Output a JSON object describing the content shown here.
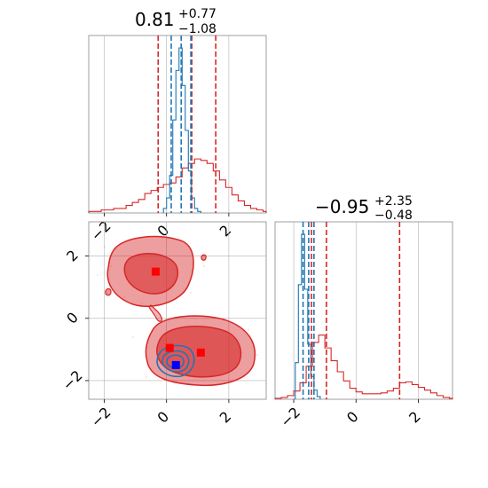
{
  "figure": {
    "colors": {
      "red": "#d62728",
      "blue": "#1f77b4",
      "grid": "#b0b0b0",
      "axis": "#888888",
      "marker_red": "#ff0000",
      "marker_blue": "#0000ff"
    }
  },
  "chart_data": [
    {
      "type": "histogram",
      "panel": "top-left",
      "title": {
        "main": "0.81",
        "plus": "+0.77",
        "minus": "−1.08"
      },
      "xlim": [
        -2.5,
        3.2
      ],
      "grid": true,
      "xticks": [
        -2,
        0,
        2
      ],
      "series": [
        {
          "color": "red",
          "bins": [
            -2.5,
            -2.3,
            -2.1,
            -1.9,
            -1.7,
            -1.5,
            -1.3,
            -1.1,
            -0.9,
            -0.7,
            -0.5,
            -0.3,
            -0.1,
            0.1,
            0.3,
            0.5,
            0.7,
            0.9,
            1.1,
            1.3,
            1.5,
            1.7,
            1.9,
            2.1,
            2.3,
            2.5,
            2.7,
            2.9,
            3.1
          ],
          "counts": [
            1,
            1,
            2,
            2,
            3,
            3,
            5,
            7,
            9,
            13,
            15,
            17,
            19,
            20,
            24,
            30,
            33,
            36,
            35,
            33,
            28,
            22,
            17,
            12,
            8,
            5,
            3,
            2,
            1
          ]
        },
        {
          "color": "blue",
          "bins": [
            -0.1,
            0.0,
            0.1,
            0.2,
            0.3,
            0.4,
            0.5,
            0.6,
            0.7,
            0.8,
            0.9,
            1.0
          ],
          "counts": [
            3,
            10,
            25,
            62,
            95,
            110,
            85,
            55,
            28,
            10,
            3,
            1
          ]
        }
      ],
      "vlines_red": [
        -0.27,
        0.81,
        1.58
      ],
      "vlines_blue": [
        0.15,
        0.47,
        0.78
      ]
    },
    {
      "type": "contour",
      "panel": "bottom-left",
      "xlim": [
        -2.5,
        3.2
      ],
      "ylim": [
        -2.6,
        3.1
      ],
      "grid": true,
      "xticks": [
        -2,
        0,
        2
      ],
      "yticks": [
        -2,
        0,
        2
      ],
      "markers": [
        {
          "x": -0.35,
          "y": 1.5,
          "color": "marker_red"
        },
        {
          "x": 0.1,
          "y": -0.95,
          "color": "marker_red"
        },
        {
          "x": 1.1,
          "y": -1.1,
          "color": "marker_red"
        },
        {
          "x": 0.3,
          "y": -1.5,
          "color": "marker_blue"
        }
      ]
    },
    {
      "type": "histogram",
      "panel": "bottom-right",
      "title": {
        "main": "−0.95",
        "plus": "+2.35",
        "minus": "−0.48"
      },
      "xlim": [
        -2.6,
        3.1
      ],
      "grid": true,
      "xticks": [
        -2,
        0,
        2
      ],
      "series": [
        {
          "color": "red",
          "bins": [
            -2.6,
            -2.4,
            -2.2,
            -2.0,
            -1.8,
            -1.6,
            -1.4,
            -1.2,
            -1.0,
            -0.8,
            -0.6,
            -0.4,
            -0.2,
            0.0,
            0.2,
            0.4,
            0.6,
            0.8,
            1.0,
            1.2,
            1.4,
            1.6,
            1.8,
            2.0,
            2.2,
            2.4,
            2.6,
            2.8,
            3.0
          ],
          "counts": [
            1,
            2,
            4,
            9,
            18,
            36,
            62,
            70,
            56,
            42,
            30,
            20,
            12,
            8,
            6,
            6,
            6,
            7,
            9,
            12,
            18,
            19,
            16,
            13,
            10,
            7,
            4,
            2,
            1
          ]
        },
        {
          "color": "blue",
          "bins": [
            -1.95,
            -1.85,
            -1.75,
            -1.65,
            -1.55,
            -1.45,
            -1.35,
            -1.25,
            -1.15
          ],
          "counts": [
            40,
            125,
            180,
            120,
            60,
            25,
            10,
            3
          ]
        }
      ],
      "vlines_red": [
        -1.43,
        -0.95,
        1.4
      ],
      "vlines_blue": [
        -1.7,
        -1.52,
        -1.35
      ]
    }
  ]
}
